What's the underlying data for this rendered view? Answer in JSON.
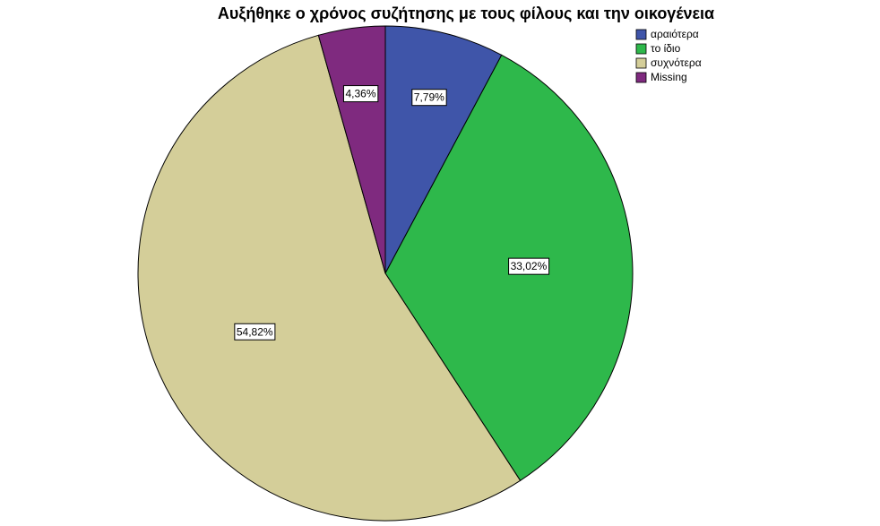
{
  "chart_data": {
    "type": "pie",
    "title": "Αυξήθηκε ο χρόνος συζήτησης με τους φίλους και την οικογένεια",
    "categories": [
      "αραιότερα",
      "το ίδιο",
      "συχνότερα",
      "Missing"
    ],
    "values": [
      7.79,
      33.02,
      54.82,
      4.36
    ],
    "value_labels": [
      "7,79%",
      "33,02%",
      "54,82%",
      "4,36%"
    ],
    "colors": [
      "#3f55a9",
      "#2eb84b",
      "#d4ce99",
      "#7f2a7f"
    ],
    "legend": "top-right"
  }
}
